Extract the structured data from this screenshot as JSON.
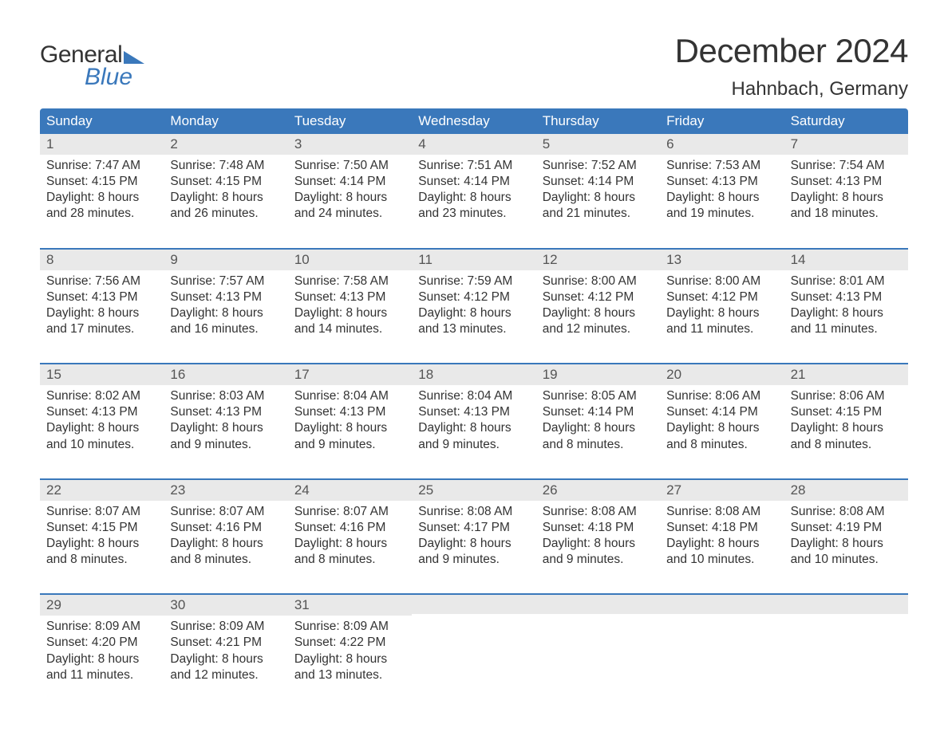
{
  "logo": {
    "text1": "General",
    "text2": "Blue"
  },
  "title": "December 2024",
  "location": "Hahnbach, Germany",
  "colors": {
    "accent": "#3a78bb",
    "header_text": "#ffffff",
    "daynum_bg": "#e9e9e9",
    "text": "#333333",
    "background": "#ffffff"
  },
  "layout": {
    "columns": 7,
    "header_fontsize": 17,
    "title_fontsize": 42,
    "location_fontsize": 24,
    "body_fontsize": 15.5
  },
  "weekdays": [
    "Sunday",
    "Monday",
    "Tuesday",
    "Wednesday",
    "Thursday",
    "Friday",
    "Saturday"
  ],
  "weeks": [
    [
      {
        "n": "1",
        "l1": "Sunrise: 7:47 AM",
        "l2": "Sunset: 4:15 PM",
        "l3": "Daylight: 8 hours",
        "l4": "and 28 minutes."
      },
      {
        "n": "2",
        "l1": "Sunrise: 7:48 AM",
        "l2": "Sunset: 4:15 PM",
        "l3": "Daylight: 8 hours",
        "l4": "and 26 minutes."
      },
      {
        "n": "3",
        "l1": "Sunrise: 7:50 AM",
        "l2": "Sunset: 4:14 PM",
        "l3": "Daylight: 8 hours",
        "l4": "and 24 minutes."
      },
      {
        "n": "4",
        "l1": "Sunrise: 7:51 AM",
        "l2": "Sunset: 4:14 PM",
        "l3": "Daylight: 8 hours",
        "l4": "and 23 minutes."
      },
      {
        "n": "5",
        "l1": "Sunrise: 7:52 AM",
        "l2": "Sunset: 4:14 PM",
        "l3": "Daylight: 8 hours",
        "l4": "and 21 minutes."
      },
      {
        "n": "6",
        "l1": "Sunrise: 7:53 AM",
        "l2": "Sunset: 4:13 PM",
        "l3": "Daylight: 8 hours",
        "l4": "and 19 minutes."
      },
      {
        "n": "7",
        "l1": "Sunrise: 7:54 AM",
        "l2": "Sunset: 4:13 PM",
        "l3": "Daylight: 8 hours",
        "l4": "and 18 minutes."
      }
    ],
    [
      {
        "n": "8",
        "l1": "Sunrise: 7:56 AM",
        "l2": "Sunset: 4:13 PM",
        "l3": "Daylight: 8 hours",
        "l4": "and 17 minutes."
      },
      {
        "n": "9",
        "l1": "Sunrise: 7:57 AM",
        "l2": "Sunset: 4:13 PM",
        "l3": "Daylight: 8 hours",
        "l4": "and 16 minutes."
      },
      {
        "n": "10",
        "l1": "Sunrise: 7:58 AM",
        "l2": "Sunset: 4:13 PM",
        "l3": "Daylight: 8 hours",
        "l4": "and 14 minutes."
      },
      {
        "n": "11",
        "l1": "Sunrise: 7:59 AM",
        "l2": "Sunset: 4:12 PM",
        "l3": "Daylight: 8 hours",
        "l4": "and 13 minutes."
      },
      {
        "n": "12",
        "l1": "Sunrise: 8:00 AM",
        "l2": "Sunset: 4:12 PM",
        "l3": "Daylight: 8 hours",
        "l4": "and 12 minutes."
      },
      {
        "n": "13",
        "l1": "Sunrise: 8:00 AM",
        "l2": "Sunset: 4:12 PM",
        "l3": "Daylight: 8 hours",
        "l4": "and 11 minutes."
      },
      {
        "n": "14",
        "l1": "Sunrise: 8:01 AM",
        "l2": "Sunset: 4:13 PM",
        "l3": "Daylight: 8 hours",
        "l4": "and 11 minutes."
      }
    ],
    [
      {
        "n": "15",
        "l1": "Sunrise: 8:02 AM",
        "l2": "Sunset: 4:13 PM",
        "l3": "Daylight: 8 hours",
        "l4": "and 10 minutes."
      },
      {
        "n": "16",
        "l1": "Sunrise: 8:03 AM",
        "l2": "Sunset: 4:13 PM",
        "l3": "Daylight: 8 hours",
        "l4": "and 9 minutes."
      },
      {
        "n": "17",
        "l1": "Sunrise: 8:04 AM",
        "l2": "Sunset: 4:13 PM",
        "l3": "Daylight: 8 hours",
        "l4": "and 9 minutes."
      },
      {
        "n": "18",
        "l1": "Sunrise: 8:04 AM",
        "l2": "Sunset: 4:13 PM",
        "l3": "Daylight: 8 hours",
        "l4": "and 9 minutes."
      },
      {
        "n": "19",
        "l1": "Sunrise: 8:05 AM",
        "l2": "Sunset: 4:14 PM",
        "l3": "Daylight: 8 hours",
        "l4": "and 8 minutes."
      },
      {
        "n": "20",
        "l1": "Sunrise: 8:06 AM",
        "l2": "Sunset: 4:14 PM",
        "l3": "Daylight: 8 hours",
        "l4": "and 8 minutes."
      },
      {
        "n": "21",
        "l1": "Sunrise: 8:06 AM",
        "l2": "Sunset: 4:15 PM",
        "l3": "Daylight: 8 hours",
        "l4": "and 8 minutes."
      }
    ],
    [
      {
        "n": "22",
        "l1": "Sunrise: 8:07 AM",
        "l2": "Sunset: 4:15 PM",
        "l3": "Daylight: 8 hours",
        "l4": "and 8 minutes."
      },
      {
        "n": "23",
        "l1": "Sunrise: 8:07 AM",
        "l2": "Sunset: 4:16 PM",
        "l3": "Daylight: 8 hours",
        "l4": "and 8 minutes."
      },
      {
        "n": "24",
        "l1": "Sunrise: 8:07 AM",
        "l2": "Sunset: 4:16 PM",
        "l3": "Daylight: 8 hours",
        "l4": "and 8 minutes."
      },
      {
        "n": "25",
        "l1": "Sunrise: 8:08 AM",
        "l2": "Sunset: 4:17 PM",
        "l3": "Daylight: 8 hours",
        "l4": "and 9 minutes."
      },
      {
        "n": "26",
        "l1": "Sunrise: 8:08 AM",
        "l2": "Sunset: 4:18 PM",
        "l3": "Daylight: 8 hours",
        "l4": "and 9 minutes."
      },
      {
        "n": "27",
        "l1": "Sunrise: 8:08 AM",
        "l2": "Sunset: 4:18 PM",
        "l3": "Daylight: 8 hours",
        "l4": "and 10 minutes."
      },
      {
        "n": "28",
        "l1": "Sunrise: 8:08 AM",
        "l2": "Sunset: 4:19 PM",
        "l3": "Daylight: 8 hours",
        "l4": "and 10 minutes."
      }
    ],
    [
      {
        "n": "29",
        "l1": "Sunrise: 8:09 AM",
        "l2": "Sunset: 4:20 PM",
        "l3": "Daylight: 8 hours",
        "l4": "and 11 minutes."
      },
      {
        "n": "30",
        "l1": "Sunrise: 8:09 AM",
        "l2": "Sunset: 4:21 PM",
        "l3": "Daylight: 8 hours",
        "l4": "and 12 minutes."
      },
      {
        "n": "31",
        "l1": "Sunrise: 8:09 AM",
        "l2": "Sunset: 4:22 PM",
        "l3": "Daylight: 8 hours",
        "l4": "and 13 minutes."
      },
      {
        "n": "",
        "l1": "",
        "l2": "",
        "l3": "",
        "l4": ""
      },
      {
        "n": "",
        "l1": "",
        "l2": "",
        "l3": "",
        "l4": ""
      },
      {
        "n": "",
        "l1": "",
        "l2": "",
        "l3": "",
        "l4": ""
      },
      {
        "n": "",
        "l1": "",
        "l2": "",
        "l3": "",
        "l4": ""
      }
    ]
  ]
}
